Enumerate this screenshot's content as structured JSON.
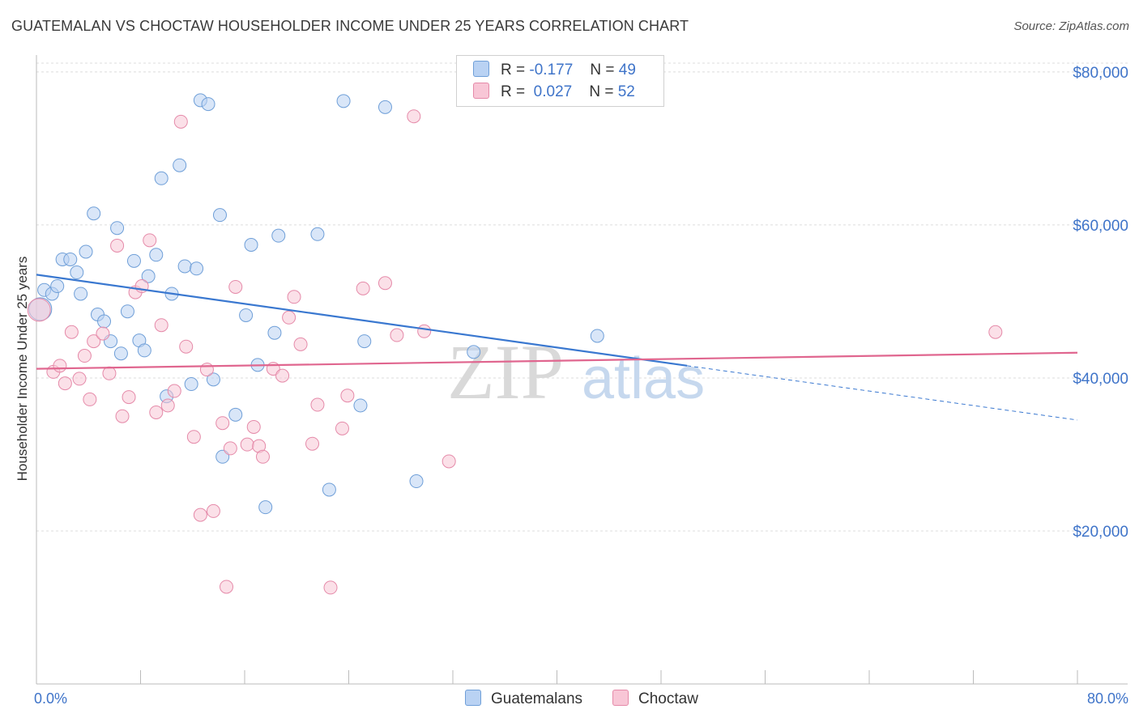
{
  "title": "GUATEMALAN VS CHOCTAW HOUSEHOLDER INCOME UNDER 25 YEARS CORRELATION CHART",
  "source": "Source: ZipAtlas.com",
  "watermark": {
    "zip": "ZIP",
    "atlas": "atlas"
  },
  "legend": {
    "rows": [
      {
        "r_label": "R =",
        "r_value": "-0.177",
        "n_label": "N =",
        "n_value": "49"
      },
      {
        "r_label": "R =",
        "r_value": "0.027",
        "n_label": "N =",
        "n_value": "52"
      }
    ]
  },
  "colors": {
    "blue_fill": "#b9d2f3",
    "blue_stroke": "#6f9fd8",
    "blue_line": "#3a78d0",
    "pink_fill": "#f8c6d6",
    "pink_stroke": "#e58aa9",
    "pink_line": "#e0668f",
    "axis_text": "#3f74c9",
    "grid": "#dcdcdc"
  },
  "chart_data": {
    "type": "scatter",
    "title": "GUATEMALAN VS CHOCTAW HOUSEHOLDER INCOME UNDER 25 YEARS CORRELATION CHART",
    "xlabel": "",
    "ylabel": "Householder Income Under 25 years",
    "xlim": [
      0,
      80
    ],
    "ylim": [
      0,
      82000
    ],
    "x_tick_labels": [
      "0.0%",
      "80.0%"
    ],
    "y_ticks": [
      20000,
      40000,
      60000,
      80000
    ],
    "y_tick_labels": [
      "$20,000",
      "$40,000",
      "$60,000",
      "$80,000"
    ],
    "grid": true,
    "series": [
      {
        "name": "Guatemalans",
        "color": "blue",
        "points": [
          [
            0.3,
            49000
          ],
          [
            0.6,
            51500
          ],
          [
            1.2,
            51000
          ],
          [
            1.6,
            52000
          ],
          [
            2.0,
            55500
          ],
          [
            2.6,
            55500
          ],
          [
            3.1,
            53800
          ],
          [
            3.4,
            51000
          ],
          [
            3.8,
            56500
          ],
          [
            4.4,
            61500
          ],
          [
            4.7,
            48300
          ],
          [
            5.2,
            47400
          ],
          [
            5.7,
            44800
          ],
          [
            6.2,
            59600
          ],
          [
            6.5,
            43200
          ],
          [
            7.0,
            48700
          ],
          [
            7.5,
            55300
          ],
          [
            7.9,
            44900
          ],
          [
            8.3,
            43600
          ],
          [
            8.6,
            53300
          ],
          [
            9.2,
            56100
          ],
          [
            9.6,
            66100
          ],
          [
            10.0,
            37600
          ],
          [
            10.4,
            51000
          ],
          [
            11.0,
            67800
          ],
          [
            11.4,
            54600
          ],
          [
            11.9,
            39200
          ],
          [
            12.3,
            54300
          ],
          [
            12.6,
            76300
          ],
          [
            13.2,
            75800
          ],
          [
            13.6,
            39800
          ],
          [
            14.1,
            61300
          ],
          [
            14.3,
            29700
          ],
          [
            15.3,
            35200
          ],
          [
            16.1,
            48200
          ],
          [
            16.5,
            57400
          ],
          [
            17.0,
            41700
          ],
          [
            17.6,
            23100
          ],
          [
            18.3,
            45900
          ],
          [
            18.6,
            58600
          ],
          [
            21.6,
            58800
          ],
          [
            22.5,
            25400
          ],
          [
            23.6,
            76200
          ],
          [
            24.9,
            36400
          ],
          [
            25.2,
            44800
          ],
          [
            26.8,
            75400
          ],
          [
            29.2,
            26500
          ],
          [
            33.6,
            43400
          ],
          [
            43.1,
            45500
          ]
        ]
      },
      {
        "name": "Choctaw",
        "color": "pink",
        "points": [
          [
            0.2,
            48900
          ],
          [
            1.3,
            40800
          ],
          [
            1.8,
            41600
          ],
          [
            2.2,
            39300
          ],
          [
            2.7,
            46000
          ],
          [
            3.3,
            39900
          ],
          [
            3.7,
            42900
          ],
          [
            4.1,
            37200
          ],
          [
            4.4,
            44800
          ],
          [
            5.1,
            45800
          ],
          [
            5.6,
            40600
          ],
          [
            6.2,
            57300
          ],
          [
            6.6,
            35000
          ],
          [
            7.1,
            37500
          ],
          [
            7.6,
            51200
          ],
          [
            8.1,
            52000
          ],
          [
            8.7,
            58000
          ],
          [
            9.2,
            35500
          ],
          [
            9.6,
            46900
          ],
          [
            10.1,
            36400
          ],
          [
            10.6,
            38300
          ],
          [
            11.1,
            73500
          ],
          [
            11.5,
            44100
          ],
          [
            12.1,
            32300
          ],
          [
            12.6,
            22100
          ],
          [
            13.1,
            41100
          ],
          [
            13.6,
            22600
          ],
          [
            14.3,
            34100
          ],
          [
            14.9,
            30800
          ],
          [
            15.3,
            51900
          ],
          [
            16.2,
            31300
          ],
          [
            16.7,
            33600
          ],
          [
            17.1,
            31100
          ],
          [
            17.4,
            29700
          ],
          [
            18.2,
            41200
          ],
          [
            18.9,
            40300
          ],
          [
            19.4,
            47900
          ],
          [
            19.8,
            50600
          ],
          [
            20.3,
            44400
          ],
          [
            21.2,
            31400
          ],
          [
            21.6,
            36500
          ],
          [
            22.6,
            12600
          ],
          [
            23.5,
            33400
          ],
          [
            23.9,
            37700
          ],
          [
            25.1,
            51700
          ],
          [
            26.8,
            52400
          ],
          [
            27.7,
            45600
          ],
          [
            29.0,
            74200
          ],
          [
            29.8,
            46100
          ],
          [
            31.7,
            29100
          ],
          [
            73.7,
            46000
          ],
          [
            14.6,
            12700
          ]
        ]
      }
    ],
    "trend_lines": [
      {
        "series": "Guatemalans",
        "x": [
          0,
          50
        ],
        "y": [
          53500,
          41600
        ],
        "dashed_extension": {
          "x": [
            50,
            80
          ],
          "y": [
            41600,
            34500
          ]
        }
      },
      {
        "series": "Choctaw",
        "x": [
          0,
          80
        ],
        "y": [
          41200,
          43300
        ]
      }
    ]
  },
  "bottom_legend": {
    "items": [
      {
        "label": "Guatemalans"
      },
      {
        "label": "Choctaw"
      }
    ]
  }
}
